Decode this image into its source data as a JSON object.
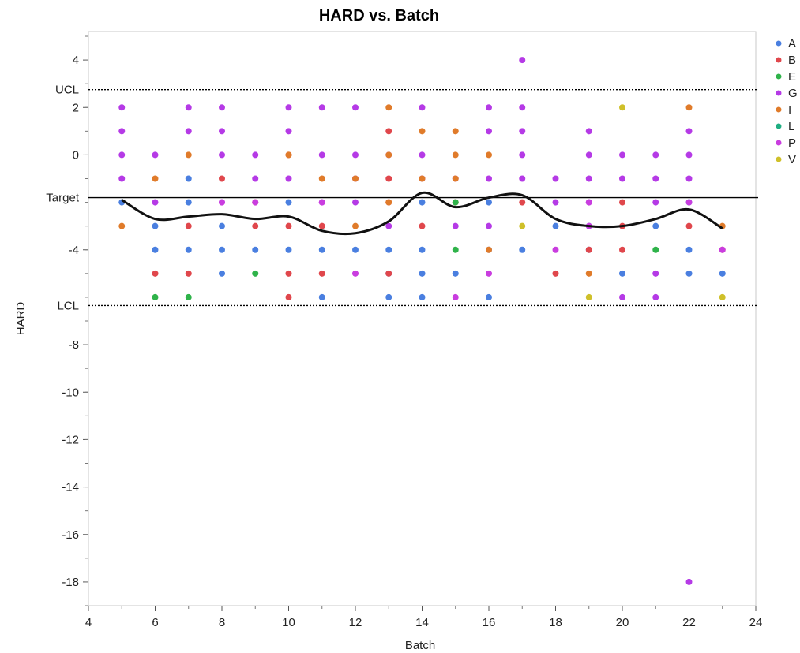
{
  "chart_data": {
    "type": "scatter",
    "title": "HARD vs. Batch",
    "xlabel": "Batch",
    "ylabel": "HARD",
    "xlim": [
      4,
      24
    ],
    "ylim": [
      -19,
      5.2
    ],
    "x_ticks": [
      4,
      6,
      8,
      10,
      12,
      14,
      16,
      18,
      20,
      22,
      24
    ],
    "y_ticks": [
      4,
      2,
      0,
      -4,
      -8,
      -10,
      -12,
      -14,
      -16,
      -18
    ],
    "reference_lines": [
      {
        "label": "UCL",
        "value": 2.75,
        "style": "dotted"
      },
      {
        "label": "Target",
        "value": -1.8,
        "style": "solid"
      },
      {
        "label": "LCL",
        "value": -6.35,
        "style": "dotted"
      }
    ],
    "legend": {
      "position": "right",
      "entries": [
        {
          "name": "A",
          "color": "#4a7fe0"
        },
        {
          "name": "B",
          "color": "#e0474c"
        },
        {
          "name": "E",
          "color": "#2fb34a"
        },
        {
          "name": "G",
          "color": "#b53ae6"
        },
        {
          "name": "I",
          "color": "#e07b2a"
        },
        {
          "name": "L",
          "color": "#1fae82"
        },
        {
          "name": "P",
          "color": "#c93ddf"
        },
        {
          "name": "V",
          "color": "#cfc02a"
        }
      ]
    },
    "series": [
      {
        "name": "A",
        "points": [
          [
            5,
            -2
          ],
          [
            6,
            -3
          ],
          [
            6,
            -4
          ],
          [
            7,
            -1
          ],
          [
            7,
            -2
          ],
          [
            7,
            -4
          ],
          [
            8,
            -3
          ],
          [
            8,
            -4
          ],
          [
            8,
            -5
          ],
          [
            9,
            -4
          ],
          [
            10,
            -2
          ],
          [
            10,
            -4
          ],
          [
            11,
            -4
          ],
          [
            11,
            -6
          ],
          [
            12,
            -4
          ],
          [
            13,
            -4
          ],
          [
            13,
            -5
          ],
          [
            13,
            -6
          ],
          [
            14,
            -2
          ],
          [
            14,
            -4
          ],
          [
            14,
            -5
          ],
          [
            14,
            -6
          ],
          [
            15,
            -5
          ],
          [
            16,
            -2
          ],
          [
            16,
            -4
          ],
          [
            16,
            -6
          ],
          [
            17,
            -4
          ],
          [
            18,
            -3
          ],
          [
            19,
            -3
          ],
          [
            19,
            -4
          ],
          [
            20,
            -5
          ],
          [
            21,
            -3
          ],
          [
            22,
            -2
          ],
          [
            22,
            -4
          ],
          [
            22,
            -5
          ],
          [
            23,
            -5
          ]
        ]
      },
      {
        "name": "B",
        "points": [
          [
            6,
            -5
          ],
          [
            7,
            -3
          ],
          [
            7,
            -5
          ],
          [
            8,
            -1
          ],
          [
            9,
            -2
          ],
          [
            9,
            -3
          ],
          [
            10,
            0
          ],
          [
            10,
            -3
          ],
          [
            10,
            -5
          ],
          [
            10,
            -6
          ],
          [
            11,
            -3
          ],
          [
            11,
            -5
          ],
          [
            13,
            1
          ],
          [
            13,
            -1
          ],
          [
            13,
            -2
          ],
          [
            13,
            -5
          ],
          [
            14,
            -3
          ],
          [
            15,
            -2
          ],
          [
            17,
            -2
          ],
          [
            18,
            -5
          ],
          [
            19,
            -4
          ],
          [
            20,
            -2
          ],
          [
            20,
            -3
          ],
          [
            20,
            -4
          ],
          [
            22,
            -3
          ],
          [
            23,
            -4
          ]
        ]
      },
      {
        "name": "E",
        "points": [
          [
            6,
            -6
          ],
          [
            7,
            -6
          ],
          [
            9,
            -5
          ],
          [
            15,
            -2
          ],
          [
            15,
            -4
          ],
          [
            21,
            -4
          ]
        ]
      },
      {
        "name": "G",
        "points": [
          [
            5,
            2
          ],
          [
            5,
            1
          ],
          [
            5,
            0
          ],
          [
            5,
            -1
          ],
          [
            6,
            0
          ],
          [
            6,
            -2
          ],
          [
            7,
            2
          ],
          [
            7,
            1
          ],
          [
            8,
            2
          ],
          [
            8,
            1
          ],
          [
            8,
            0
          ],
          [
            8,
            -2
          ],
          [
            9,
            0
          ],
          [
            9,
            -1
          ],
          [
            10,
            2
          ],
          [
            10,
            1
          ],
          [
            10,
            -1
          ],
          [
            11,
            2
          ],
          [
            11,
            0
          ],
          [
            11,
            -2
          ],
          [
            12,
            2
          ],
          [
            12,
            0
          ],
          [
            12,
            -1
          ],
          [
            12,
            -2
          ],
          [
            13,
            0
          ],
          [
            13,
            -3
          ],
          [
            14,
            2
          ],
          [
            14,
            0
          ],
          [
            14,
            -1
          ],
          [
            15,
            -1
          ],
          [
            15,
            -3
          ],
          [
            16,
            2
          ],
          [
            16,
            1
          ],
          [
            16,
            -1
          ],
          [
            16,
            -3
          ],
          [
            17,
            2
          ],
          [
            17,
            1
          ],
          [
            17,
            0
          ],
          [
            17,
            -1
          ],
          [
            17,
            4
          ],
          [
            18,
            -1
          ],
          [
            18,
            -2
          ],
          [
            19,
            1
          ],
          [
            19,
            0
          ],
          [
            19,
            -1
          ],
          [
            19,
            -2
          ],
          [
            20,
            0
          ],
          [
            20,
            -1
          ],
          [
            20,
            -6
          ],
          [
            21,
            0
          ],
          [
            21,
            -1
          ],
          [
            21,
            -2
          ],
          [
            21,
            -5
          ],
          [
            21,
            -6
          ],
          [
            22,
            1
          ],
          [
            22,
            0
          ],
          [
            22,
            -1
          ],
          [
            22,
            -18
          ]
        ]
      },
      {
        "name": "I",
        "points": [
          [
            5,
            -3
          ],
          [
            6,
            -1
          ],
          [
            7,
            0
          ],
          [
            10,
            0
          ],
          [
            11,
            -1
          ],
          [
            12,
            -1
          ],
          [
            12,
            -3
          ],
          [
            13,
            2
          ],
          [
            13,
            0
          ],
          [
            13,
            -2
          ],
          [
            14,
            1
          ],
          [
            14,
            -1
          ],
          [
            15,
            1
          ],
          [
            15,
            0
          ],
          [
            15,
            -1
          ],
          [
            16,
            0
          ],
          [
            16,
            -4
          ],
          [
            19,
            -5
          ],
          [
            22,
            2
          ],
          [
            23,
            -3
          ]
        ]
      },
      {
        "name": "L",
        "points": []
      },
      {
        "name": "P",
        "points": [
          [
            8,
            -2
          ],
          [
            9,
            -2
          ],
          [
            11,
            -2
          ],
          [
            12,
            -5
          ],
          [
            15,
            -6
          ],
          [
            16,
            -5
          ],
          [
            18,
            -4
          ],
          [
            19,
            -2
          ],
          [
            19,
            -3
          ],
          [
            22,
            -2
          ],
          [
            23,
            -4
          ]
        ]
      },
      {
        "name": "V",
        "points": [
          [
            17,
            -3
          ],
          [
            19,
            -6
          ],
          [
            20,
            2
          ],
          [
            23,
            -6
          ]
        ]
      }
    ],
    "smoother": {
      "color": "#111111",
      "x": [
        5,
        6,
        7,
        8,
        9,
        10,
        11,
        12,
        13,
        14,
        15,
        16,
        17,
        18,
        19,
        20,
        21,
        22,
        23
      ],
      "y": [
        -1.9,
        -2.7,
        -2.6,
        -2.5,
        -2.7,
        -2.6,
        -3.2,
        -3.3,
        -2.8,
        -1.6,
        -2.2,
        -1.8,
        -1.7,
        -2.7,
        -3.0,
        -3.0,
        -2.7,
        -2.3,
        -3.1
      ]
    }
  }
}
